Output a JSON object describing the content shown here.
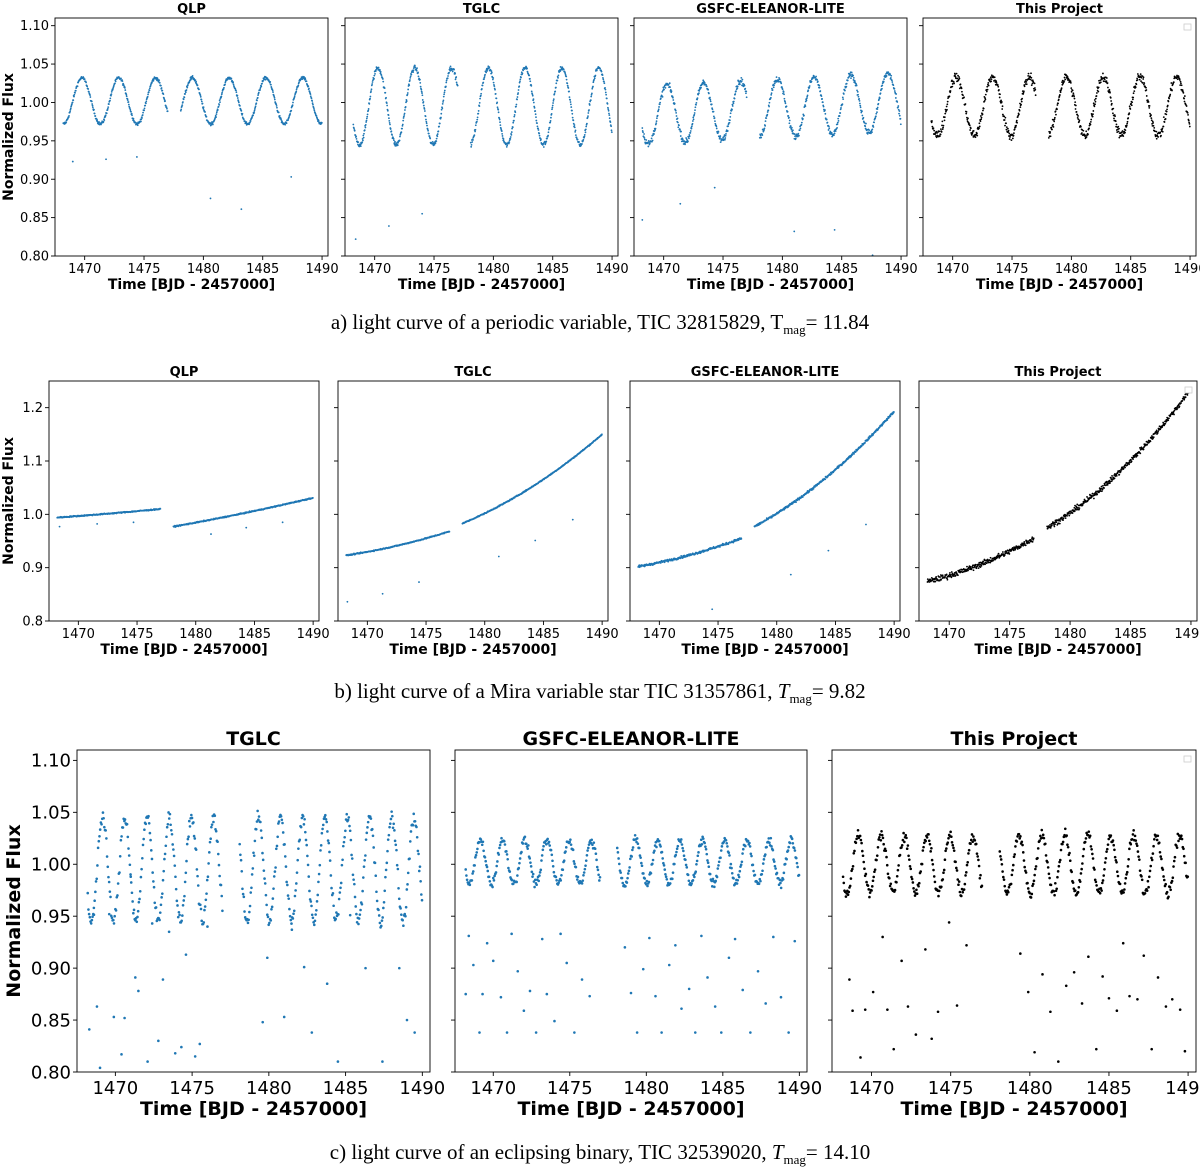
{
  "captions": [
    {
      "prefix": "a) light curve of a periodic variable, TIC 32815829, ",
      "t": "T",
      "sub": "mag",
      "suffix": "= 11.84"
    },
    {
      "prefix": "b) light curve of a Mira variable star TIC 31357861, ",
      "t": "T",
      "sub": "mag",
      "suffix": "= 9.82"
    },
    {
      "prefix": "c) light curve of an eclipsing binary, TIC 32539020, ",
      "t": "T",
      "sub": "mag",
      "suffix": "= 14.10"
    }
  ],
  "colors": {
    "pipeline": "#1f77b4",
    "this_project": "#000000"
  },
  "chart_data": [
    {
      "row": "a",
      "type": "scatter",
      "title": "QLP",
      "xlabel": "Time [BJD - 2457000]",
      "ylabel": "Normalized Flux",
      "xlim": [
        1467.5,
        1490.5
      ],
      "ylim": [
        0.8,
        1.11
      ],
      "xticks": [
        1470,
        1475,
        1480,
        1485,
        1490
      ],
      "yticks": [
        0.8,
        0.85,
        0.9,
        0.95,
        1.0,
        1.05,
        1.1
      ],
      "color": "#1f77b4",
      "model": {
        "kind": "sine",
        "mean": 1.002,
        "amp": 0.03,
        "period": 3.1,
        "phase": 1469.0,
        "noise": 0.002
      },
      "outliers": [
        [
          1469.0,
          0.923
        ],
        [
          1471.8,
          0.926
        ],
        [
          1474.4,
          0.929
        ],
        [
          1480.6,
          0.875
        ],
        [
          1483.2,
          0.861
        ],
        [
          1487.4,
          0.903
        ]
      ]
    },
    {
      "row": "a",
      "type": "scatter",
      "title": "TGLC",
      "xlabel": "Time [BJD - 2457000]",
      "ylabel": "",
      "xlim": [
        1467.5,
        1490.5
      ],
      "ylim": [
        0.8,
        1.11
      ],
      "xticks": [
        1470,
        1475,
        1480,
        1485,
        1490
      ],
      "yticks": [
        0.8,
        0.85,
        0.9,
        0.95,
        1.0,
        1.05,
        1.1
      ],
      "color": "#1f77b4",
      "model": {
        "kind": "sine",
        "mean": 0.995,
        "amp": 0.05,
        "period": 3.1,
        "phase": 1469.5,
        "noise": 0.003
      },
      "outliers": [
        [
          1468.4,
          0.822
        ],
        [
          1471.2,
          0.839
        ],
        [
          1474.0,
          0.855
        ]
      ]
    },
    {
      "row": "a",
      "type": "scatter",
      "title": "GSFC-ELEANOR-LITE",
      "xlabel": "Time [BJD - 2457000]",
      "ylabel": "",
      "xlim": [
        1467.5,
        1490.5
      ],
      "ylim": [
        0.8,
        1.11
      ],
      "xticks": [
        1470,
        1475,
        1480,
        1485,
        1490
      ],
      "yticks": [
        0.8,
        0.85,
        0.9,
        0.95,
        1.0,
        1.05,
        1.1
      ],
      "color": "#1f77b4",
      "model": {
        "kind": "sine",
        "mean": 0.992,
        "amp": 0.038,
        "period": 3.1,
        "phase": 1469.5,
        "noise": 0.004,
        "trend": 0.0008
      },
      "outliers": [
        [
          1468.2,
          0.847
        ],
        [
          1471.4,
          0.868
        ],
        [
          1474.3,
          0.889
        ],
        [
          1481.0,
          0.832
        ],
        [
          1484.4,
          0.834
        ],
        [
          1487.6,
          0.801
        ]
      ]
    },
    {
      "row": "a",
      "type": "scatter",
      "title": "This Project",
      "xlabel": "Time [BJD - 2457000]",
      "ylabel": "",
      "xlim": [
        1467.5,
        1490.5
      ],
      "ylim": [
        0.8,
        1.11
      ],
      "xticks": [
        1470,
        1475,
        1480,
        1485,
        1490
      ],
      "yticks": [
        0.8,
        0.85,
        0.9,
        0.95,
        1.0,
        1.05,
        1.1
      ],
      "color": "#000000",
      "model": {
        "kind": "sine",
        "mean": 0.995,
        "amp": 0.038,
        "period": 3.1,
        "phase": 1469.5,
        "noise": 0.006
      },
      "outliers": []
    },
    {
      "row": "b",
      "type": "scatter",
      "title": "QLP",
      "xlabel": "Time [BJD - 2457000]",
      "ylabel": "Normalized Flux",
      "xlim": [
        1467.5,
        1490.5
      ],
      "ylim": [
        0.8,
        1.25
      ],
      "xticks": [
        1470,
        1475,
        1480,
        1485,
        1490
      ],
      "yticks": [
        0.8,
        0.9,
        1.0,
        1.1,
        1.2
      ],
      "color": "#1f77b4",
      "model": {
        "kind": "poly",
        "seg1": [
          0.994,
          1.01
        ],
        "seg2": [
          0.977,
          1.031
        ],
        "curv": 0.15,
        "noise": 0.001
      },
      "outliers": [
        [
          1468.4,
          0.977
        ],
        [
          1471.6,
          0.982
        ],
        [
          1474.7,
          0.985
        ],
        [
          1481.3,
          0.963
        ],
        [
          1484.3,
          0.975
        ],
        [
          1487.4,
          0.985
        ]
      ]
    },
    {
      "row": "b",
      "type": "scatter",
      "title": "TGLC",
      "xlabel": "Time [BJD - 2457000]",
      "ylabel": "",
      "xlim": [
        1467.5,
        1490.5
      ],
      "ylim": [
        0.8,
        1.25
      ],
      "xticks": [
        1470,
        1475,
        1480,
        1485,
        1490
      ],
      "yticks": [
        0.8,
        0.9,
        1.0,
        1.1,
        1.2
      ],
      "color": "#1f77b4",
      "model": {
        "kind": "poly",
        "seg1": [
          0.923,
          0.968
        ],
        "seg2": [
          0.983,
          1.15
        ],
        "curv": 0.35,
        "noise": 0.001
      },
      "outliers": [
        [
          1468.3,
          0.836
        ],
        [
          1471.3,
          0.851
        ],
        [
          1474.4,
          0.873
        ],
        [
          1481.2,
          0.921
        ],
        [
          1484.3,
          0.951
        ],
        [
          1487.5,
          0.99
        ]
      ]
    },
    {
      "row": "b",
      "type": "scatter",
      "title": "GSFC-ELEANOR-LITE",
      "xlabel": "Time [BJD - 2457000]",
      "ylabel": "",
      "xlim": [
        1467.5,
        1490.5
      ],
      "ylim": [
        0.8,
        1.25
      ],
      "xticks": [
        1470,
        1475,
        1480,
        1485,
        1490
      ],
      "yticks": [
        0.8,
        0.9,
        1.0,
        1.1,
        1.2
      ],
      "color": "#1f77b4",
      "model": {
        "kind": "poly",
        "seg1": [
          0.902,
          0.955
        ],
        "seg2": [
          0.977,
          1.193
        ],
        "curv": 0.35,
        "noise": 0.002
      },
      "outliers": [
        [
          1474.5,
          0.822
        ],
        [
          1481.2,
          0.887
        ],
        [
          1484.4,
          0.932
        ],
        [
          1487.6,
          0.981
        ]
      ]
    },
    {
      "row": "b",
      "type": "scatter",
      "title": "This Project",
      "xlabel": "Time [BJD - 2457000]",
      "ylabel": "",
      "xlim": [
        1467.5,
        1490.5
      ],
      "ylim": [
        0.8,
        1.25
      ],
      "xticks": [
        1470,
        1475,
        1480,
        1485,
        1490
      ],
      "yticks": [
        0.8,
        0.9,
        1.0,
        1.1,
        1.2
      ],
      "color": "#000000",
      "model": {
        "kind": "poly",
        "seg1": [
          0.874,
          0.955
        ],
        "seg2": [
          0.975,
          1.235
        ],
        "curv": 0.4,
        "noise": 0.005
      },
      "outliers": []
    },
    {
      "row": "c",
      "type": "scatter",
      "title": "TGLC",
      "xlabel": "Time [BJD - 2457000]",
      "ylabel": "Normalized Flux",
      "xlim": [
        1467.5,
        1490.5
      ],
      "ylim": [
        0.8,
        1.11
      ],
      "xticks": [
        1470,
        1475,
        1480,
        1485,
        1490
      ],
      "yticks": [
        0.8,
        0.85,
        0.9,
        0.95,
        1.0,
        1.05,
        1.1
      ],
      "color": "#1f77b4",
      "model": {
        "kind": "sine",
        "mean": 0.995,
        "amp": 0.05,
        "period": 1.45,
        "phase": 1468.8,
        "noise": 0.006,
        "sparse": true
      },
      "outliers": [
        [
          1468.3,
          0.841
        ],
        [
          1468.6,
          0.958
        ],
        [
          1468.8,
          0.863
        ],
        [
          1469.0,
          0.804
        ],
        [
          1469.6,
          0.952
        ],
        [
          1469.9,
          0.853
        ],
        [
          1470.4,
          0.817
        ],
        [
          1470.6,
          0.852
        ],
        [
          1471.0,
          0.988
        ],
        [
          1471.3,
          0.891
        ],
        [
          1471.5,
          0.878
        ],
        [
          1472.1,
          0.81
        ],
        [
          1472.4,
          0.943
        ],
        [
          1472.8,
          0.83
        ],
        [
          1473.1,
          0.889
        ],
        [
          1473.5,
          0.935
        ],
        [
          1473.9,
          0.818
        ],
        [
          1474.3,
          0.824
        ],
        [
          1474.6,
          0.913
        ],
        [
          1475.2,
          0.815
        ],
        [
          1475.5,
          0.827
        ],
        [
          1476.0,
          0.94
        ],
        [
          1479.6,
          0.848
        ],
        [
          1479.9,
          0.91
        ],
        [
          1481.0,
          0.853
        ],
        [
          1481.5,
          0.937
        ],
        [
          1482.3,
          0.901
        ],
        [
          1482.8,
          0.838
        ],
        [
          1483.8,
          0.885
        ],
        [
          1484.5,
          0.81
        ],
        [
          1485.3,
          0.951
        ],
        [
          1486.3,
          0.9
        ],
        [
          1487.4,
          0.81
        ],
        [
          1488.5,
          0.9
        ],
        [
          1489.0,
          0.85
        ],
        [
          1489.5,
          0.838
        ]
      ]
    },
    {
      "row": "c",
      "type": "scatter",
      "title": "GSFC-ELEANOR-LITE",
      "xlabel": "Time [BJD - 2457000]",
      "ylabel": "",
      "xlim": [
        1467.5,
        1490.5
      ],
      "ylim": [
        0.8,
        1.11
      ],
      "xticks": [
        1470,
        1475,
        1480,
        1485,
        1490
      ],
      "yticks": [
        0.8,
        0.85,
        0.9,
        0.95,
        1.0,
        1.05,
        1.1
      ],
      "color": "#1f77b4",
      "model": {
        "kind": "sine",
        "mean": 1.002,
        "amp": 0.021,
        "period": 1.45,
        "phase": 1468.8,
        "noise": 0.004,
        "sparse": true
      },
      "outliers": [
        [
          1468.2,
          0.875
        ],
        [
          1468.4,
          0.931
        ],
        [
          1468.7,
          0.903
        ],
        [
          1469.1,
          0.838
        ],
        [
          1469.3,
          0.875
        ],
        [
          1469.6,
          0.924
        ],
        [
          1470.0,
          0.907
        ],
        [
          1470.5,
          0.872
        ],
        [
          1470.9,
          0.838
        ],
        [
          1471.2,
          0.933
        ],
        [
          1471.6,
          0.897
        ],
        [
          1472.0,
          0.859
        ],
        [
          1472.4,
          0.878
        ],
        [
          1472.8,
          0.838
        ],
        [
          1473.2,
          0.928
        ],
        [
          1473.5,
          0.875
        ],
        [
          1474.0,
          0.849
        ],
        [
          1474.4,
          0.933
        ],
        [
          1474.8,
          0.905
        ],
        [
          1475.3,
          0.838
        ],
        [
          1475.8,
          0.889
        ],
        [
          1476.3,
          0.873
        ],
        [
          1478.6,
          0.92
        ],
        [
          1479.0,
          0.876
        ],
        [
          1479.4,
          0.838
        ],
        [
          1479.8,
          0.899
        ],
        [
          1480.2,
          0.929
        ],
        [
          1480.6,
          0.873
        ],
        [
          1481.0,
          0.838
        ],
        [
          1481.5,
          0.903
        ],
        [
          1481.9,
          0.922
        ],
        [
          1482.3,
          0.861
        ],
        [
          1482.8,
          0.88
        ],
        [
          1483.2,
          0.838
        ],
        [
          1483.6,
          0.931
        ],
        [
          1484.0,
          0.891
        ],
        [
          1484.5,
          0.863
        ],
        [
          1484.9,
          0.838
        ],
        [
          1485.4,
          0.91
        ],
        [
          1485.8,
          0.928
        ],
        [
          1486.3,
          0.879
        ],
        [
          1486.8,
          0.838
        ],
        [
          1487.3,
          0.897
        ],
        [
          1487.8,
          0.866
        ],
        [
          1488.3,
          0.93
        ],
        [
          1488.8,
          0.872
        ],
        [
          1489.3,
          0.838
        ],
        [
          1489.7,
          0.926
        ]
      ]
    },
    {
      "row": "c",
      "type": "scatter",
      "title": "This Project",
      "xlabel": "Time [BJD - 2457000]",
      "ylabel": "",
      "xlim": [
        1467.5,
        1490.5
      ],
      "ylim": [
        0.8,
        1.11
      ],
      "xticks": [
        1470,
        1475,
        1480,
        1485,
        1490
      ],
      "yticks": [
        0.8,
        0.85,
        0.9,
        0.95,
        1.0,
        1.05,
        1.1
      ],
      "color": "#000000",
      "model": {
        "kind": "sine",
        "mean": 1.0,
        "amp": 0.028,
        "period": 1.45,
        "phase": 1468.8,
        "noise": 0.005,
        "sparse": true
      },
      "outliers": [
        [
          1468.6,
          0.889
        ],
        [
          1468.8,
          0.859
        ],
        [
          1469.3,
          0.814
        ],
        [
          1469.6,
          0.86
        ],
        [
          1470.1,
          0.877
        ],
        [
          1470.7,
          0.93
        ],
        [
          1471.0,
          0.86
        ],
        [
          1471.4,
          0.822
        ],
        [
          1471.9,
          0.907
        ],
        [
          1472.3,
          0.863
        ],
        [
          1472.8,
          0.836
        ],
        [
          1473.4,
          0.918
        ],
        [
          1473.8,
          0.832
        ],
        [
          1474.2,
          0.858
        ],
        [
          1474.9,
          0.944
        ],
        [
          1475.4,
          0.864
        ],
        [
          1476.0,
          0.922
        ],
        [
          1479.4,
          0.914
        ],
        [
          1479.9,
          0.877
        ],
        [
          1480.3,
          0.819
        ],
        [
          1480.8,
          0.894
        ],
        [
          1481.3,
          0.858
        ],
        [
          1481.8,
          0.81
        ],
        [
          1482.3,
          0.883
        ],
        [
          1482.8,
          0.896
        ],
        [
          1483.3,
          0.866
        ],
        [
          1483.7,
          0.911
        ],
        [
          1484.2,
          0.822
        ],
        [
          1484.6,
          0.892
        ],
        [
          1485.0,
          0.871
        ],
        [
          1485.5,
          0.859
        ],
        [
          1485.9,
          0.924
        ],
        [
          1486.3,
          0.873
        ],
        [
          1486.8,
          0.87
        ],
        [
          1487.2,
          0.912
        ],
        [
          1487.7,
          0.822
        ],
        [
          1488.1,
          0.891
        ],
        [
          1488.6,
          0.863
        ],
        [
          1489.0,
          0.87
        ],
        [
          1489.5,
          0.86
        ],
        [
          1489.8,
          0.82
        ]
      ]
    }
  ]
}
